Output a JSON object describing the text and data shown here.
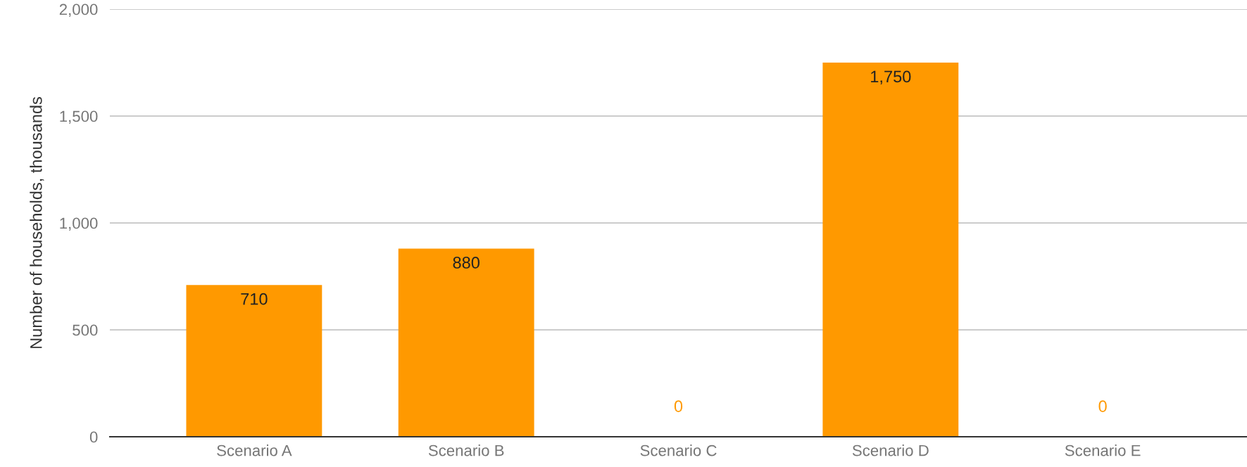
{
  "chart_data": {
    "type": "bar",
    "ylabel": "Number of households, thousands",
    "categories": [
      "Scenario A",
      "Scenario B",
      "Scenario C",
      "Scenario D",
      "Scenario E"
    ],
    "values": [
      710,
      880,
      0,
      1750,
      0
    ],
    "color": "#ff9900",
    "ylim": [
      0,
      2000
    ],
    "yticks": [
      0,
      500,
      {
        "value": 1000,
        "label": "1,000"
      },
      {
        "value": 1500,
        "label": "1,500"
      },
      {
        "value": 2000,
        "label": "2,000"
      }
    ],
    "grid": "y",
    "value_labels": [
      "710",
      "880",
      "0",
      "1,750",
      "0"
    ]
  }
}
